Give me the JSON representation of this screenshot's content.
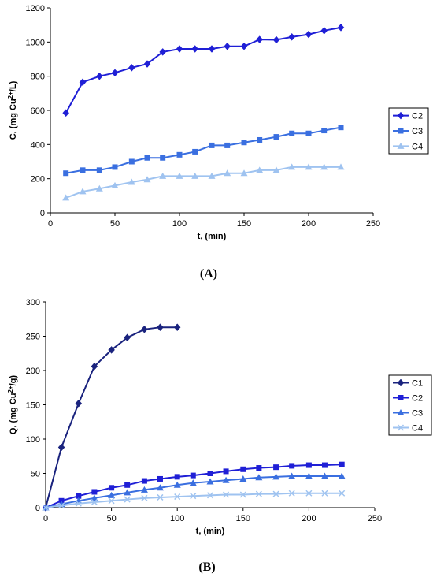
{
  "chart_data": [
    {
      "type": "line",
      "panel_label": "(A)",
      "xlabel": "t, (min)",
      "ylabel_parts": [
        "C, (mg Cu",
        "2+",
        "/L)"
      ],
      "xlim": [
        0,
        250
      ],
      "ylim": [
        0,
        1200
      ],
      "xticks": [
        0,
        50,
        100,
        150,
        200,
        250
      ],
      "yticks": [
        0,
        200,
        400,
        600,
        800,
        1000,
        1200
      ],
      "grid": false,
      "legend_position": "right",
      "series": [
        {
          "name": "C2",
          "color": "#1f1fd6",
          "marker": "diamond",
          "x": [
            12,
            25,
            38,
            50,
            63,
            75,
            87,
            100,
            112,
            125,
            137,
            150,
            162,
            175,
            187,
            200,
            212,
            225
          ],
          "y": [
            585,
            765,
            800,
            820,
            850,
            872,
            942,
            960,
            960,
            960,
            975,
            975,
            1015,
            1013,
            1030,
            1045,
            1067,
            1085
          ]
        },
        {
          "name": "C3",
          "color": "#3a6fe0",
          "marker": "square",
          "x": [
            12,
            25,
            38,
            50,
            63,
            75,
            87,
            100,
            112,
            125,
            137,
            150,
            162,
            175,
            187,
            200,
            212,
            225
          ],
          "y": [
            232,
            250,
            250,
            268,
            300,
            322,
            322,
            340,
            358,
            395,
            395,
            412,
            427,
            445,
            465,
            465,
            482,
            500
          ]
        },
        {
          "name": "C4",
          "color": "#9fc3f0",
          "marker": "triangle",
          "x": [
            12,
            25,
            38,
            50,
            63,
            75,
            87,
            100,
            112,
            125,
            137,
            150,
            162,
            175,
            187,
            200,
            212,
            225
          ],
          "y": [
            88,
            125,
            142,
            160,
            180,
            195,
            215,
            215,
            215,
            215,
            232,
            232,
            250,
            250,
            268,
            268,
            268,
            268
          ]
        }
      ]
    },
    {
      "type": "line",
      "panel_label": "(B)",
      "xlabel": "t, (min)",
      "ylabel_parts": [
        "Q, (mg Cu",
        "2+",
        "/g)"
      ],
      "xlim": [
        0,
        250
      ],
      "ylim": [
        0,
        300
      ],
      "xticks": [
        0,
        50,
        100,
        150,
        200,
        250
      ],
      "yticks": [
        0,
        50,
        100,
        150,
        200,
        250,
        300
      ],
      "grid": false,
      "legend_position": "right",
      "series": [
        {
          "name": "C1",
          "color": "#1a237e",
          "marker": "diamond",
          "x": [
            0,
            12,
            25,
            37,
            50,
            62,
            75,
            87,
            100
          ],
          "y": [
            0,
            88,
            152,
            206,
            230,
            248,
            260,
            263,
            263
          ]
        },
        {
          "name": "C2",
          "color": "#1f1fd6",
          "marker": "square",
          "x": [
            0,
            12,
            25,
            37,
            50,
            62,
            75,
            87,
            100,
            112,
            125,
            137,
            150,
            162,
            175,
            187,
            200,
            212,
            225
          ],
          "y": [
            0,
            10,
            17,
            23,
            29,
            33,
            39,
            42,
            45,
            47,
            50,
            53,
            56,
            58,
            59,
            61,
            62,
            62,
            63
          ]
        },
        {
          "name": "C3",
          "color": "#3a6fe0",
          "marker": "triangle",
          "x": [
            0,
            12,
            25,
            37,
            50,
            62,
            75,
            87,
            100,
            112,
            125,
            137,
            150,
            162,
            175,
            187,
            200,
            212,
            225
          ],
          "y": [
            0,
            5,
            10,
            14,
            18,
            22,
            26,
            29,
            33,
            36,
            38,
            40,
            42,
            44,
            45,
            46,
            46,
            46,
            46
          ]
        },
        {
          "name": "C4",
          "color": "#9fc3f0",
          "marker": "x",
          "x": [
            0,
            12,
            25,
            37,
            50,
            62,
            75,
            87,
            100,
            112,
            125,
            137,
            150,
            162,
            175,
            187,
            200,
            212,
            225
          ],
          "y": [
            0,
            3,
            6,
            8,
            10,
            12,
            14,
            15,
            16,
            17,
            18,
            19,
            19,
            20,
            20,
            21,
            21,
            21,
            21
          ]
        }
      ]
    }
  ]
}
